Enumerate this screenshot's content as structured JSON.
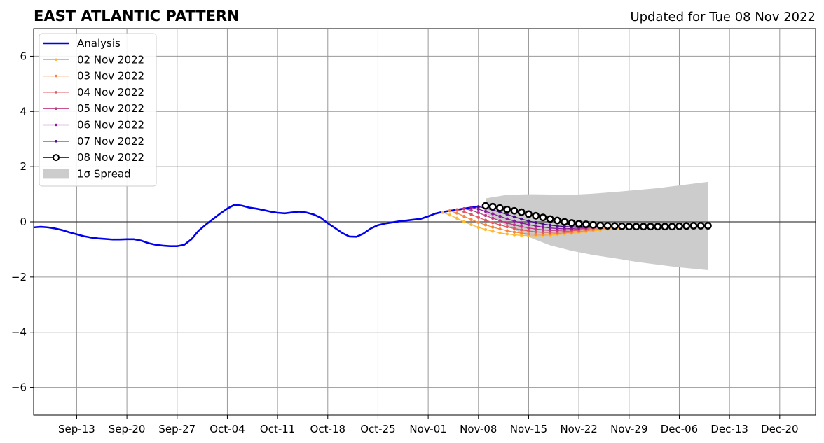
{
  "title": "EAST ATLANTIC PATTERN",
  "updated": "Updated for Tue 08 Nov 2022",
  "chart_data": {
    "type": "line",
    "xlim": [
      "2022-09-07",
      "2022-12-25"
    ],
    "ylim": [
      -7,
      7
    ],
    "yticks": [
      -6,
      -4,
      -2,
      0,
      2,
      4,
      6
    ],
    "ytick_labels": [
      "−6",
      "−4",
      "−2",
      "0",
      "2",
      "4",
      "6"
    ],
    "xticks": [
      "2022-09-13",
      "2022-09-20",
      "2022-09-27",
      "2022-10-04",
      "2022-10-11",
      "2022-10-18",
      "2022-10-25",
      "2022-11-01",
      "2022-11-08",
      "2022-11-15",
      "2022-11-22",
      "2022-11-29",
      "2022-12-06",
      "2022-12-13",
      "2022-12-20"
    ],
    "xtick_labels": [
      "Sep-13",
      "Sep-20",
      "Sep-27",
      "Oct-04",
      "Oct-11",
      "Oct-18",
      "Oct-25",
      "Nov-01",
      "Nov-08",
      "Nov-15",
      "Nov-22",
      "Nov-29",
      "Dec-06",
      "Dec-13",
      "Dec-20"
    ],
    "grid": true,
    "legend_position": "upper-left",
    "colors": {
      "analysis": "#0000ee",
      "spread": "#cccccc",
      "grid": "#999999"
    },
    "analysis": {
      "name": "Analysis",
      "x": [
        "2022-09-07",
        "2022-09-08",
        "2022-09-09",
        "2022-09-10",
        "2022-09-11",
        "2022-09-12",
        "2022-09-13",
        "2022-09-14",
        "2022-09-15",
        "2022-09-16",
        "2022-09-17",
        "2022-09-18",
        "2022-09-19",
        "2022-09-20",
        "2022-09-21",
        "2022-09-22",
        "2022-09-23",
        "2022-09-24",
        "2022-09-25",
        "2022-09-26",
        "2022-09-27",
        "2022-09-28",
        "2022-09-29",
        "2022-09-30",
        "2022-10-01",
        "2022-10-02",
        "2022-10-03",
        "2022-10-04",
        "2022-10-05",
        "2022-10-06",
        "2022-10-07",
        "2022-10-08",
        "2022-10-09",
        "2022-10-10",
        "2022-10-11",
        "2022-10-12",
        "2022-10-13",
        "2022-10-14",
        "2022-10-15",
        "2022-10-16",
        "2022-10-17",
        "2022-10-18",
        "2022-10-19",
        "2022-10-20",
        "2022-10-21",
        "2022-10-22",
        "2022-10-23",
        "2022-10-24",
        "2022-10-25",
        "2022-10-26",
        "2022-10-27",
        "2022-10-28",
        "2022-10-29",
        "2022-10-30",
        "2022-10-31",
        "2022-11-01",
        "2022-11-02",
        "2022-11-03",
        "2022-11-04",
        "2022-11-05",
        "2022-11-06",
        "2022-11-07",
        "2022-11-08"
      ],
      "y": [
        -0.2,
        -0.18,
        -0.2,
        -0.24,
        -0.3,
        -0.38,
        -0.45,
        -0.52,
        -0.57,
        -0.6,
        -0.62,
        -0.64,
        -0.64,
        -0.63,
        -0.63,
        -0.68,
        -0.77,
        -0.83,
        -0.86,
        -0.88,
        -0.88,
        -0.83,
        -0.63,
        -0.32,
        -0.1,
        0.1,
        0.3,
        0.48,
        0.62,
        0.59,
        0.52,
        0.48,
        0.43,
        0.37,
        0.33,
        0.31,
        0.34,
        0.37,
        0.34,
        0.27,
        0.15,
        -0.05,
        -0.22,
        -0.4,
        -0.53,
        -0.54,
        -0.42,
        -0.24,
        -0.12,
        -0.06,
        -0.02,
        0.02,
        0.05,
        0.08,
        0.11,
        0.2,
        0.3,
        0.36,
        0.4,
        0.44,
        0.48,
        0.52,
        0.56
      ]
    },
    "forecasts": [
      {
        "name": "02 Nov 2022",
        "color": "#ffb833",
        "start": "2022-11-03",
        "y": [
          0.34,
          0.25,
          0.13,
          0.0,
          -0.1,
          -0.2,
          -0.28,
          -0.34,
          -0.4,
          -0.44,
          -0.47,
          -0.49,
          -0.5,
          -0.5,
          -0.49,
          -0.48,
          -0.46,
          -0.44,
          -0.42,
          -0.39,
          -0.36,
          -0.33,
          -0.3,
          -0.27,
          -0.25,
          -0.23
        ]
      },
      {
        "name": "03 Nov 2022",
        "color": "#f5873f",
        "start": "2022-11-04",
        "y": [
          0.4,
          0.32,
          0.2,
          0.08,
          -0.02,
          -0.11,
          -0.19,
          -0.26,
          -0.32,
          -0.37,
          -0.41,
          -0.44,
          -0.45,
          -0.45,
          -0.44,
          -0.42,
          -0.4,
          -0.38,
          -0.35,
          -0.32,
          -0.29,
          -0.26,
          -0.23,
          -0.21
        ]
      },
      {
        "name": "04 Nov 2022",
        "color": "#e15b64",
        "start": "2022-11-05",
        "y": [
          0.44,
          0.37,
          0.27,
          0.16,
          0.06,
          -0.03,
          -0.11,
          -0.18,
          -0.24,
          -0.29,
          -0.33,
          -0.36,
          -0.38,
          -0.38,
          -0.37,
          -0.35,
          -0.33,
          -0.3,
          -0.27,
          -0.24,
          -0.21,
          -0.19
        ]
      },
      {
        "name": "05 Nov 2022",
        "color": "#c13a82",
        "start": "2022-11-06",
        "y": [
          0.48,
          0.42,
          0.33,
          0.23,
          0.13,
          0.04,
          -0.04,
          -0.11,
          -0.17,
          -0.22,
          -0.26,
          -0.29,
          -0.31,
          -0.31,
          -0.3,
          -0.28,
          -0.26,
          -0.23,
          -0.2,
          -0.18
        ]
      },
      {
        "name": "06 Nov 2022",
        "color": "#8b1a9c",
        "start": "2022-11-07",
        "y": [
          0.52,
          0.46,
          0.38,
          0.29,
          0.2,
          0.11,
          0.03,
          -0.04,
          -0.1,
          -0.15,
          -0.19,
          -0.22,
          -0.24,
          -0.25,
          -0.24,
          -0.22,
          -0.2,
          -0.18,
          -0.16
        ]
      },
      {
        "name": "07 Nov 2022",
        "color": "#4b0c8a",
        "start": "2022-11-08",
        "y": [
          0.55,
          0.5,
          0.43,
          0.35,
          0.27,
          0.18,
          0.1,
          0.03,
          -0.03,
          -0.08,
          -0.12,
          -0.15,
          -0.17,
          -0.18,
          -0.18,
          -0.17,
          -0.15,
          -0.14
        ]
      }
    ],
    "latest": {
      "name": "08 Nov 2022",
      "color": "#000000",
      "x": [
        "2022-11-09",
        "2022-11-10",
        "2022-11-11",
        "2022-11-12",
        "2022-11-13",
        "2022-11-14",
        "2022-11-15",
        "2022-11-16",
        "2022-11-17",
        "2022-11-18",
        "2022-11-19",
        "2022-11-20",
        "2022-11-21",
        "2022-11-22",
        "2022-11-23",
        "2022-11-24",
        "2022-11-25",
        "2022-11-26",
        "2022-11-27",
        "2022-11-28",
        "2022-11-29",
        "2022-11-30",
        "2022-12-01",
        "2022-12-02",
        "2022-12-03",
        "2022-12-04",
        "2022-12-05",
        "2022-12-06",
        "2022-12-07",
        "2022-12-08",
        "2022-12-09",
        "2022-12-10"
      ],
      "y": [
        0.58,
        0.55,
        0.5,
        0.45,
        0.4,
        0.35,
        0.28,
        0.22,
        0.16,
        0.1,
        0.05,
        0.0,
        -0.04,
        -0.07,
        -0.09,
        -0.11,
        -0.13,
        -0.14,
        -0.15,
        -0.16,
        -0.17,
        -0.17,
        -0.17,
        -0.17,
        -0.17,
        -0.17,
        -0.17,
        -0.16,
        -0.15,
        -0.14,
        -0.14,
        -0.14
      ]
    },
    "spread": {
      "name": "1σ Spread",
      "x": [
        "2022-11-09",
        "2022-11-12",
        "2022-11-15",
        "2022-11-18",
        "2022-11-21",
        "2022-11-24",
        "2022-11-27",
        "2022-11-30",
        "2022-12-03",
        "2022-12-06",
        "2022-12-10"
      ],
      "upper": [
        0.85,
        0.98,
        1.0,
        0.99,
        0.98,
        1.02,
        1.08,
        1.15,
        1.22,
        1.32,
        1.45
      ],
      "lower": [
        0.3,
        -0.15,
        -0.55,
        -0.85,
        -1.05,
        -1.2,
        -1.32,
        -1.45,
        -1.55,
        -1.65,
        -1.75
      ]
    },
    "legend_labels": [
      "Analysis",
      "02 Nov 2022",
      "03 Nov 2022",
      "04 Nov 2022",
      "05 Nov 2022",
      "06 Nov 2022",
      "07 Nov 2022",
      "08 Nov 2022",
      "1σ Spread"
    ]
  }
}
